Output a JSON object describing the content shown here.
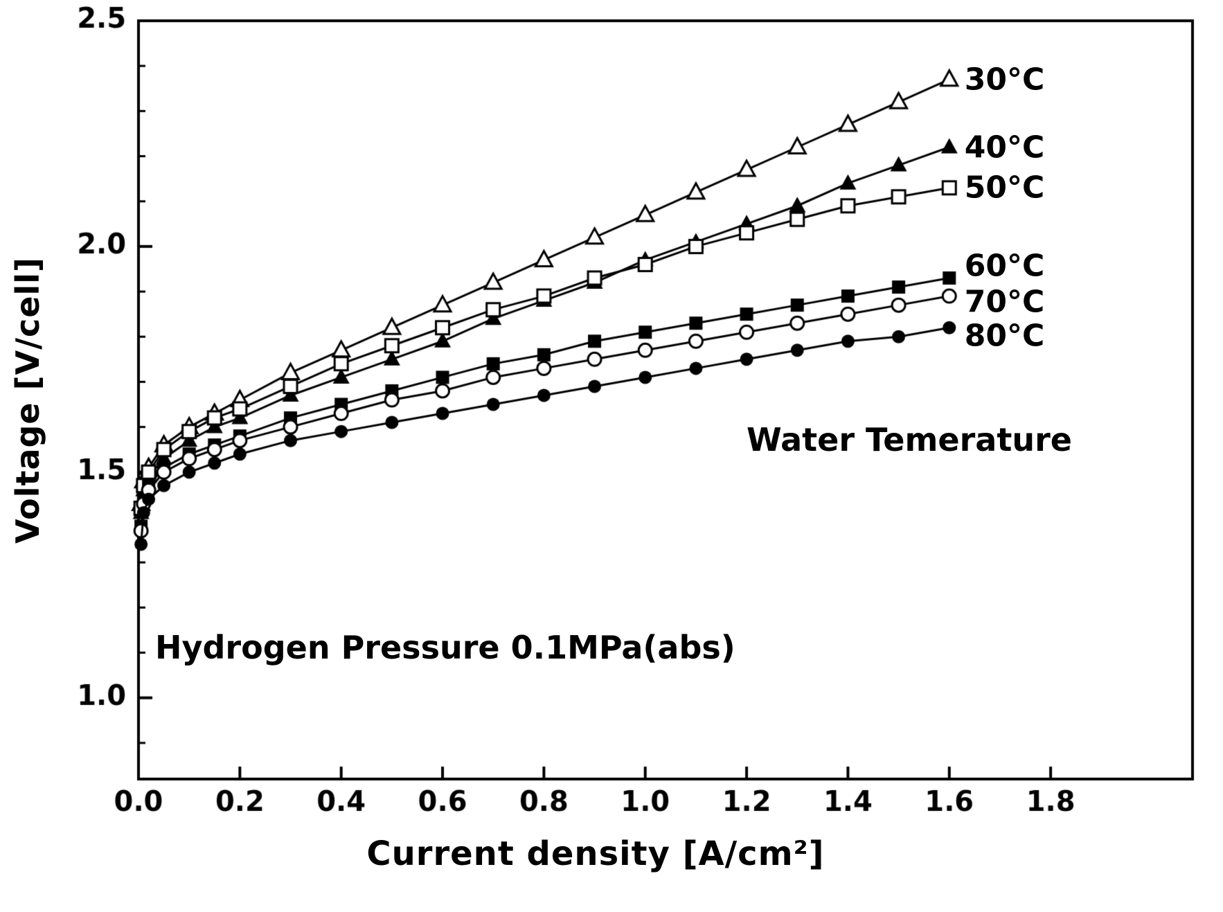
{
  "figure": {
    "background": "#ffffff",
    "ink": "#000000"
  },
  "chart_data": {
    "type": "line",
    "title": "",
    "xlabel": "Current density [A/cm²]",
    "ylabel": "Voltage [V/cell]",
    "xlim": [
      0,
      2.08
    ],
    "ylim": [
      0.82,
      2.5
    ],
    "xticks": [
      0.0,
      0.2,
      0.4,
      0.6,
      0.8,
      1.0,
      1.2,
      1.4,
      1.6,
      1.8
    ],
    "yticks": [
      1.0,
      1.5,
      2.0,
      2.5
    ],
    "y_minor_tick_step": 0.1,
    "grid": false,
    "legend_position": "end-of-line-labels",
    "annotations": [
      {
        "text": "Water Temerature",
        "x": 1.2,
        "y": 1.55
      },
      {
        "text": "Hydrogen Pressure 0.1MPa(abs)",
        "x": 0.035,
        "y": 1.09
      }
    ],
    "x": [
      0.005,
      0.01,
      0.02,
      0.05,
      0.1,
      0.15,
      0.2,
      0.3,
      0.4,
      0.5,
      0.6,
      0.7,
      0.8,
      0.9,
      1.0,
      1.1,
      1.2,
      1.3,
      1.4,
      1.5,
      1.6
    ],
    "series": [
      {
        "name": "30°C",
        "marker": "triangle-open",
        "values": [
          1.43,
          1.48,
          1.51,
          1.56,
          1.6,
          1.63,
          1.66,
          1.72,
          1.77,
          1.82,
          1.87,
          1.92,
          1.97,
          2.02,
          2.07,
          2.12,
          2.17,
          2.22,
          2.27,
          2.32,
          2.37
        ]
      },
      {
        "name": "40°C",
        "marker": "triangle-filled",
        "values": [
          1.41,
          1.46,
          1.49,
          1.53,
          1.57,
          1.6,
          1.62,
          1.67,
          1.71,
          1.75,
          1.79,
          1.84,
          1.88,
          1.92,
          1.97,
          2.01,
          2.05,
          2.09,
          2.14,
          2.18,
          2.22
        ]
      },
      {
        "name": "50°C",
        "marker": "square-open",
        "values": [
          1.42,
          1.47,
          1.5,
          1.55,
          1.59,
          1.62,
          1.64,
          1.69,
          1.74,
          1.78,
          1.82,
          1.86,
          1.89,
          1.93,
          1.96,
          2.0,
          2.03,
          2.06,
          2.09,
          2.11,
          2.13
        ]
      },
      {
        "name": "60°C",
        "marker": "square-filled",
        "values": [
          1.38,
          1.44,
          1.47,
          1.51,
          1.54,
          1.56,
          1.58,
          1.62,
          1.65,
          1.68,
          1.71,
          1.74,
          1.76,
          1.79,
          1.81,
          1.83,
          1.85,
          1.87,
          1.89,
          1.91,
          1.93
        ]
      },
      {
        "name": "70°C",
        "marker": "circle-open",
        "values": [
          1.37,
          1.43,
          1.46,
          1.5,
          1.53,
          1.55,
          1.57,
          1.6,
          1.63,
          1.66,
          1.68,
          1.71,
          1.73,
          1.75,
          1.77,
          1.79,
          1.81,
          1.83,
          1.85,
          1.87,
          1.89
        ]
      },
      {
        "name": "80°C",
        "marker": "circle-filled",
        "values": [
          1.34,
          1.41,
          1.44,
          1.47,
          1.5,
          1.52,
          1.54,
          1.57,
          1.59,
          1.61,
          1.63,
          1.65,
          1.67,
          1.69,
          1.71,
          1.73,
          1.75,
          1.77,
          1.79,
          1.8,
          1.82
        ]
      }
    ]
  }
}
